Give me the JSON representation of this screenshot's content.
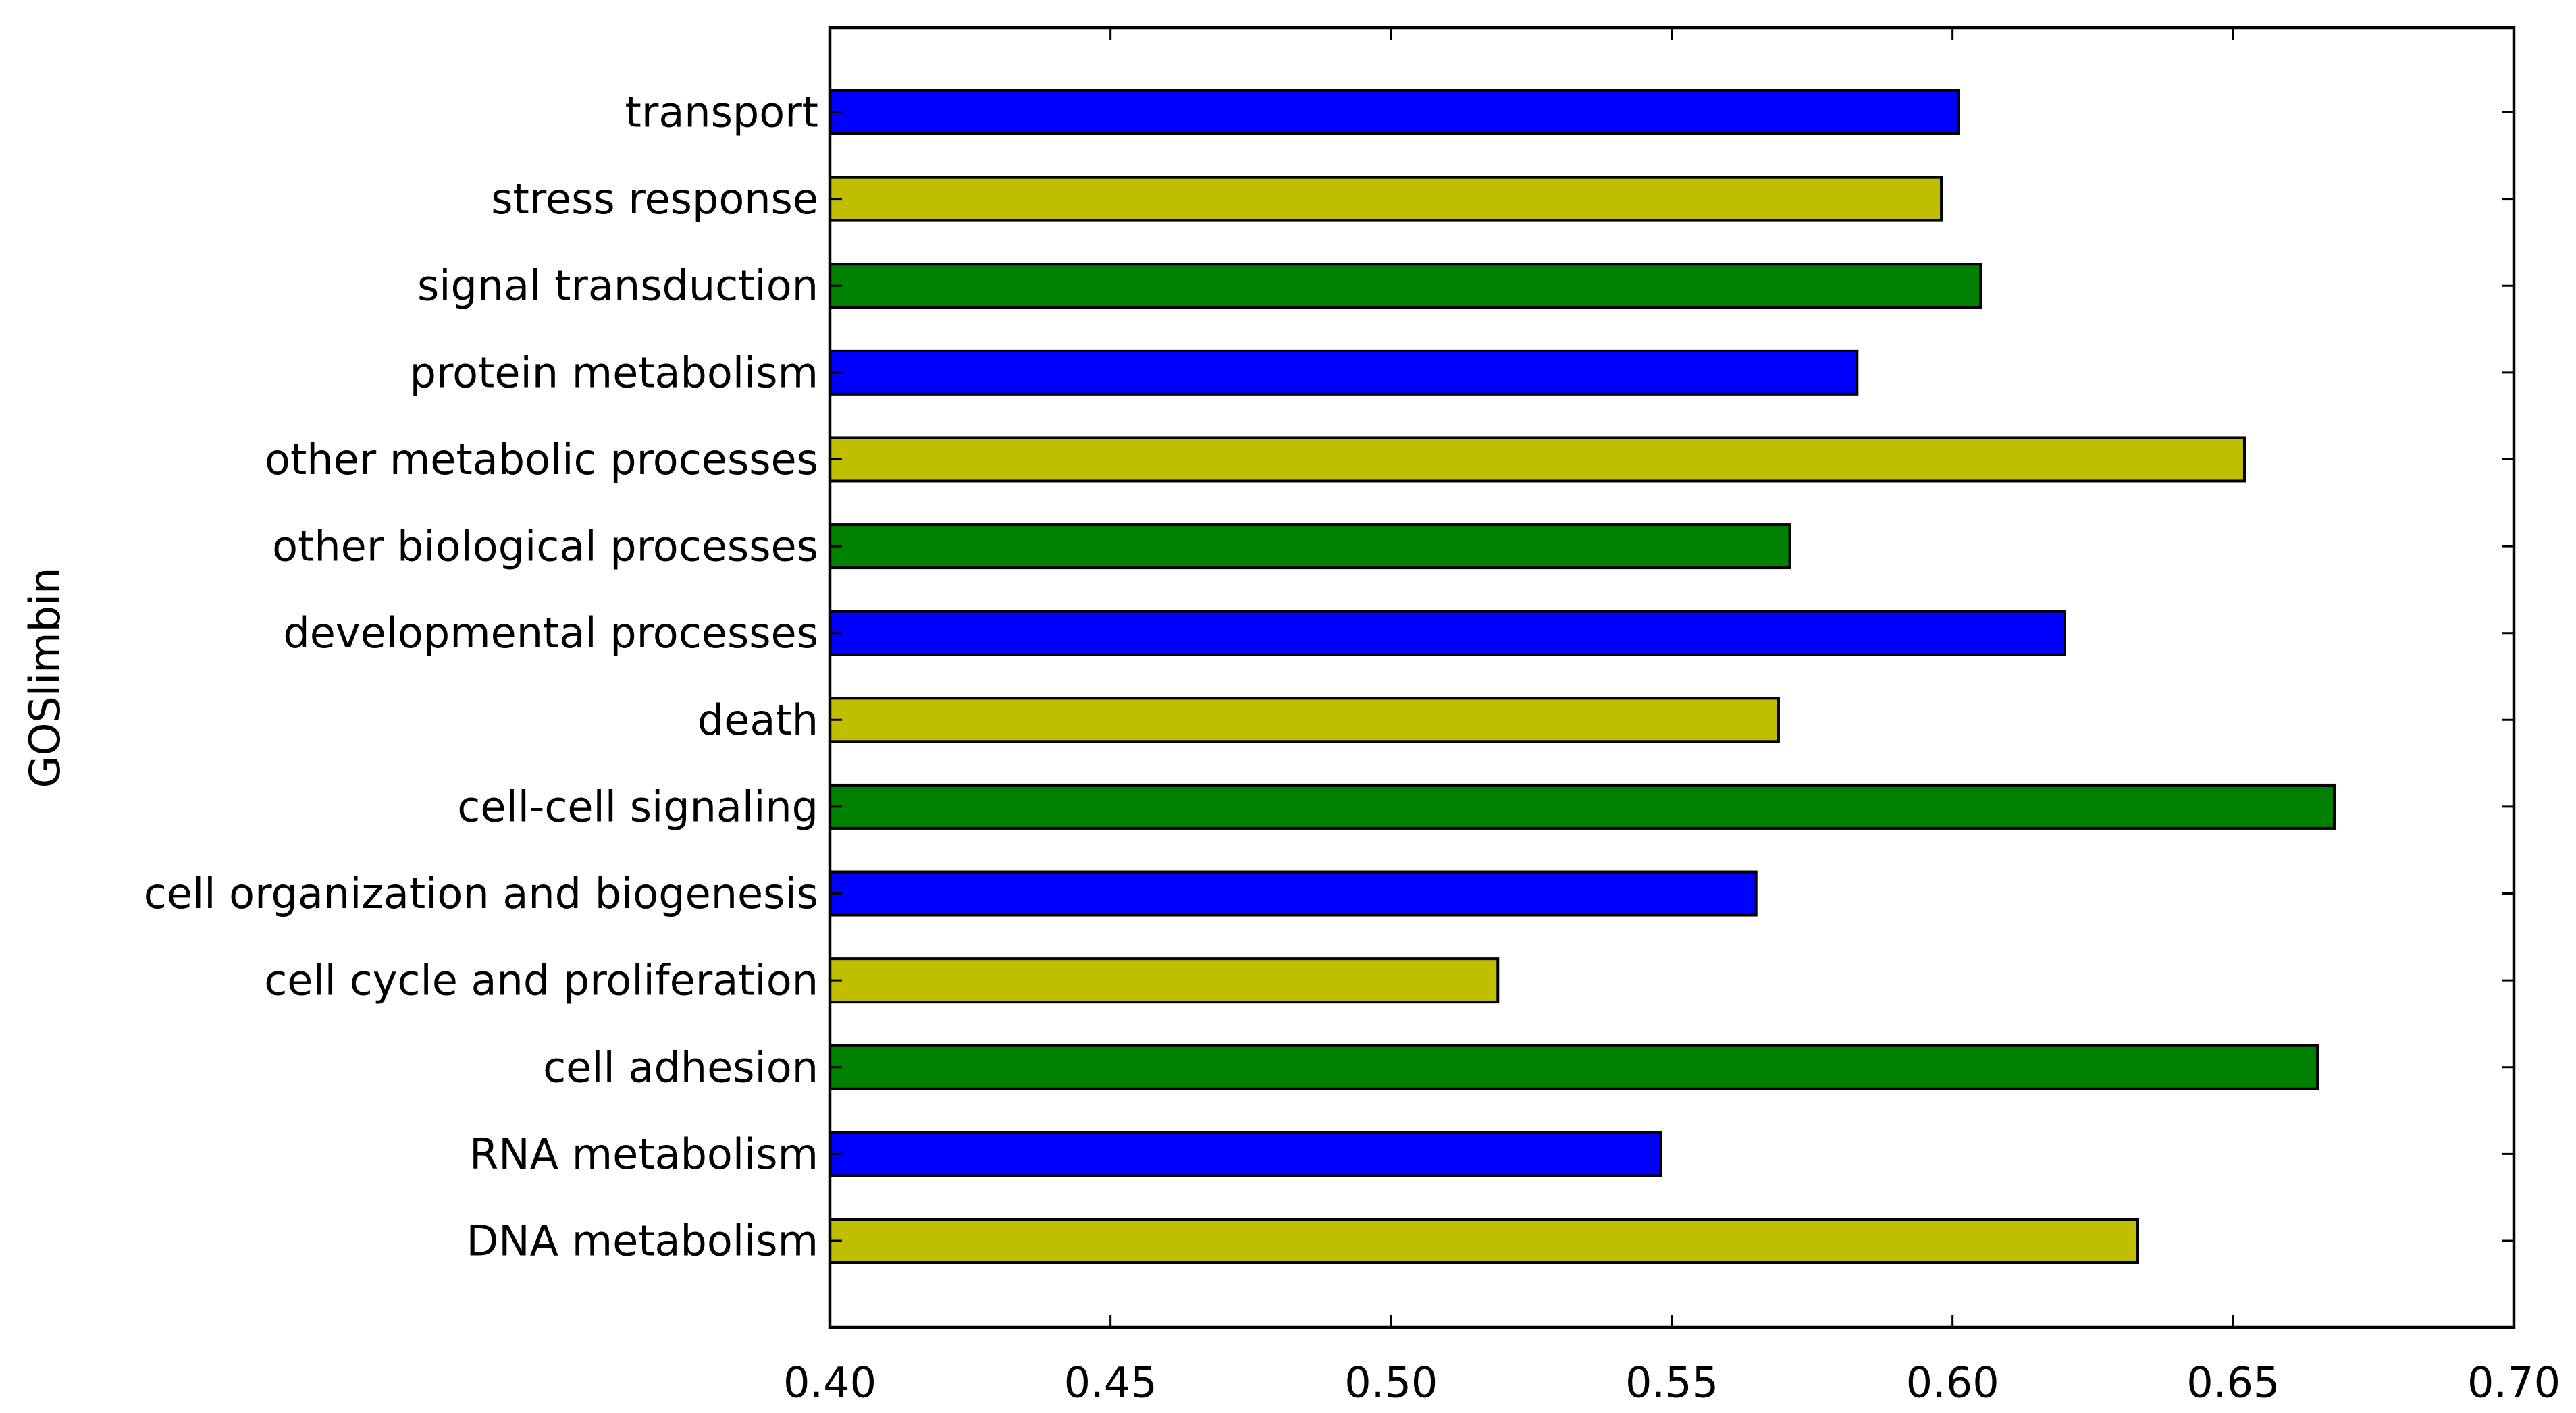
{
  "chart_data": {
    "type": "bar",
    "orientation": "horizontal",
    "title": "",
    "xlabel": "",
    "ylabel": "GOSlimbin",
    "xlim": [
      0.4,
      0.7
    ],
    "xticks": [
      "0.40",
      "0.45",
      "0.50",
      "0.55",
      "0.60",
      "0.65",
      "0.70"
    ],
    "xtick_values": [
      0.4,
      0.45,
      0.5,
      0.55,
      0.6,
      0.65,
      0.7
    ],
    "grid": false,
    "legend": "none",
    "categories": [
      "DNA metabolism",
      "RNA metabolism",
      "cell adhesion",
      "cell cycle and proliferation",
      "cell organization and biogenesis",
      "cell-cell signaling",
      "death",
      "developmental processes",
      "other biological processes",
      "other metabolic processes",
      "protein metabolism",
      "signal transduction",
      "stress response",
      "transport"
    ],
    "values": [
      0.633,
      0.548,
      0.665,
      0.519,
      0.565,
      0.668,
      0.569,
      0.62,
      0.571,
      0.652,
      0.583,
      0.605,
      0.598,
      0.601
    ],
    "bar_colors": [
      "#bfbf00",
      "#0000ff",
      "#008000",
      "#bfbf00",
      "#0000ff",
      "#008000",
      "#bfbf00",
      "#0000ff",
      "#008000",
      "#bfbf00",
      "#0000ff",
      "#008000",
      "#bfbf00",
      "#0000ff"
    ]
  }
}
